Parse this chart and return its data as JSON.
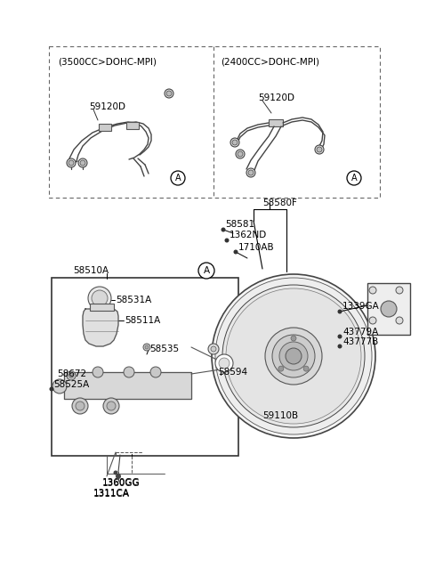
{
  "bg_color": "#ffffff",
  "fig_width": 4.8,
  "fig_height": 6.56,
  "dpi": 100,
  "labels": {
    "top_left_title": "(3500CC>DOHC-MPI)",
    "top_right_title": "(2400CC>DOHC-MPI)",
    "lbl_59120D": "59120D",
    "lbl_58580F": "58580F",
    "lbl_58581": "58581",
    "lbl_1362ND": "1362ND",
    "lbl_1710AB": "1710AB",
    "lbl_58510A": "58510A",
    "lbl_58531A": "58531A",
    "lbl_58511A": "58511A",
    "lbl_58535": "58535",
    "lbl_58672": "58672",
    "lbl_58525A": "58525A",
    "lbl_58594": "58594",
    "lbl_59110B": "59110B",
    "lbl_1339GA": "1339GA",
    "lbl_43779A": "43779A",
    "lbl_43777B": "43777B",
    "lbl_1360GG": "1360GG",
    "lbl_1311CA": "1311CA",
    "lbl_A": "A"
  }
}
